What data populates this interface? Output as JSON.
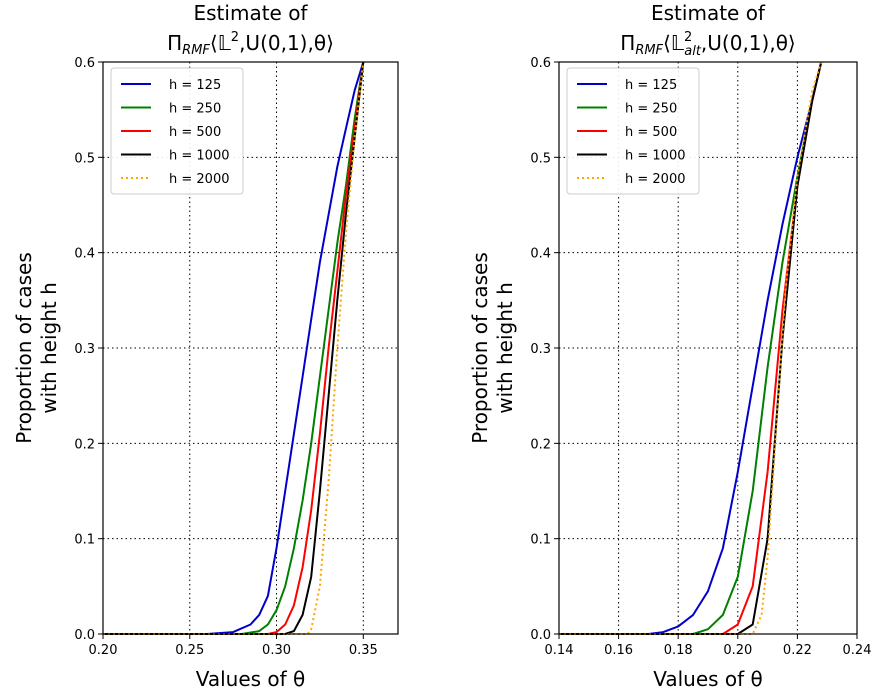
{
  "chart_data": [
    {
      "type": "line",
      "title_line1": "Estimate of",
      "title_line2": "Π",
      "title_sub": "RMF",
      "title_rest_a": "⟨𝕃",
      "title_sup": "2",
      "title_rest_b": ",U(0,1),θ⟩",
      "xlabel": "Values of θ",
      "ylabel_line1": "Proportion of cases",
      "ylabel_line2": "with height h",
      "xlim": [
        0.2,
        0.37
      ],
      "ylim": [
        0.0,
        0.6
      ],
      "xticks": [
        0.2,
        0.25,
        0.3,
        0.35
      ],
      "xtick_labels": [
        "0.20",
        "0.25",
        "0.30",
        "0.35"
      ],
      "yticks": [
        0.0,
        0.1,
        0.2,
        0.3,
        0.4,
        0.5,
        0.6
      ],
      "ytick_labels": [
        "0.0",
        "0.1",
        "0.2",
        "0.3",
        "0.4",
        "0.5",
        "0.6"
      ],
      "grid": true,
      "legend_position": "top-left",
      "series": [
        {
          "name": "h = 125",
          "color": "#0000cc",
          "style": "solid",
          "x": [
            0.2,
            0.26,
            0.275,
            0.285,
            0.29,
            0.295,
            0.3,
            0.305,
            0.31,
            0.315,
            0.32,
            0.325,
            0.33,
            0.335,
            0.34,
            0.345,
            0.35
          ],
          "y": [
            0.0,
            0.0,
            0.002,
            0.01,
            0.02,
            0.04,
            0.09,
            0.15,
            0.21,
            0.27,
            0.33,
            0.39,
            0.44,
            0.49,
            0.53,
            0.57,
            0.6
          ]
        },
        {
          "name": "h = 250",
          "color": "#008000",
          "style": "solid",
          "x": [
            0.2,
            0.28,
            0.29,
            0.295,
            0.3,
            0.305,
            0.31,
            0.315,
            0.32,
            0.325,
            0.33,
            0.335,
            0.34,
            0.345,
            0.35
          ],
          "y": [
            0.0,
            0.0,
            0.003,
            0.01,
            0.025,
            0.05,
            0.09,
            0.14,
            0.2,
            0.27,
            0.34,
            0.41,
            0.47,
            0.54,
            0.6
          ]
        },
        {
          "name": "h = 500",
          "color": "#ff0000",
          "style": "solid",
          "x": [
            0.2,
            0.295,
            0.3,
            0.305,
            0.31,
            0.315,
            0.32,
            0.325,
            0.33,
            0.335,
            0.34,
            0.345,
            0.35
          ],
          "y": [
            0.0,
            0.0,
            0.002,
            0.01,
            0.03,
            0.07,
            0.13,
            0.21,
            0.3,
            0.38,
            0.46,
            0.53,
            0.6
          ]
        },
        {
          "name": "h = 1000",
          "color": "#000000",
          "style": "solid",
          "x": [
            0.2,
            0.305,
            0.31,
            0.315,
            0.32,
            0.325,
            0.33,
            0.335,
            0.34,
            0.345,
            0.35
          ],
          "y": [
            0.0,
            0.0,
            0.003,
            0.02,
            0.06,
            0.15,
            0.25,
            0.35,
            0.44,
            0.52,
            0.6
          ]
        },
        {
          "name": "h = 2000",
          "color": "#ffa500",
          "style": "dotted",
          "x": [
            0.2,
            0.318,
            0.32,
            0.325,
            0.33,
            0.335,
            0.34,
            0.345,
            0.35
          ],
          "y": [
            0.0,
            0.0,
            0.005,
            0.05,
            0.16,
            0.3,
            0.42,
            0.52,
            0.6
          ]
        }
      ]
    },
    {
      "type": "line",
      "title_line1": "Estimate of",
      "title_line2": "Π",
      "title_sub": "RMF",
      "title_rest_a": "⟨𝕃",
      "title_sup": "2",
      "title_sub2": "alt",
      "title_rest_b": ",U(0,1),θ⟩",
      "xlabel": "Values of θ",
      "ylabel_line1": "Proportion of cases",
      "ylabel_line2": "with height h",
      "xlim": [
        0.14,
        0.24
      ],
      "ylim": [
        0.0,
        0.6
      ],
      "xticks": [
        0.14,
        0.16,
        0.18,
        0.2,
        0.22,
        0.24
      ],
      "xtick_labels": [
        "0.14",
        "0.16",
        "0.18",
        "0.20",
        "0.22",
        "0.24"
      ],
      "yticks": [
        0.0,
        0.1,
        0.2,
        0.3,
        0.4,
        0.5,
        0.6
      ],
      "ytick_labels": [
        "0.0",
        "0.1",
        "0.2",
        "0.3",
        "0.4",
        "0.5",
        "0.6"
      ],
      "grid": true,
      "legend_position": "top-left",
      "series": [
        {
          "name": "h = 125",
          "color": "#0000cc",
          "style": "solid",
          "x": [
            0.14,
            0.17,
            0.175,
            0.18,
            0.185,
            0.19,
            0.195,
            0.2,
            0.205,
            0.21,
            0.215,
            0.22,
            0.225,
            0.228
          ],
          "y": [
            0.0,
            0.0,
            0.002,
            0.008,
            0.02,
            0.045,
            0.09,
            0.17,
            0.26,
            0.35,
            0.43,
            0.5,
            0.56,
            0.6
          ]
        },
        {
          "name": "h = 250",
          "color": "#008000",
          "style": "solid",
          "x": [
            0.14,
            0.185,
            0.19,
            0.195,
            0.2,
            0.205,
            0.21,
            0.215,
            0.22,
            0.225,
            0.228
          ],
          "y": [
            0.0,
            0.0,
            0.005,
            0.02,
            0.06,
            0.15,
            0.28,
            0.39,
            0.48,
            0.56,
            0.6
          ]
        },
        {
          "name": "h = 500",
          "color": "#ff0000",
          "style": "solid",
          "x": [
            0.14,
            0.195,
            0.2,
            0.205,
            0.21,
            0.215,
            0.22,
            0.225,
            0.228
          ],
          "y": [
            0.0,
            0.0,
            0.01,
            0.05,
            0.17,
            0.34,
            0.47,
            0.56,
            0.6
          ]
        },
        {
          "name": "h = 1000",
          "color": "#000000",
          "style": "solid",
          "x": [
            0.14,
            0.2,
            0.205,
            0.21,
            0.215,
            0.22,
            0.225,
            0.228
          ],
          "y": [
            0.0,
            0.0,
            0.01,
            0.1,
            0.31,
            0.47,
            0.56,
            0.6
          ]
        },
        {
          "name": "h = 2000",
          "color": "#ffa500",
          "style": "dotted",
          "x": [
            0.14,
            0.205,
            0.208,
            0.21,
            0.213,
            0.216,
            0.22,
            0.225,
            0.228
          ],
          "y": [
            0.0,
            0.0,
            0.02,
            0.08,
            0.22,
            0.36,
            0.48,
            0.57,
            0.6
          ]
        }
      ]
    }
  ]
}
